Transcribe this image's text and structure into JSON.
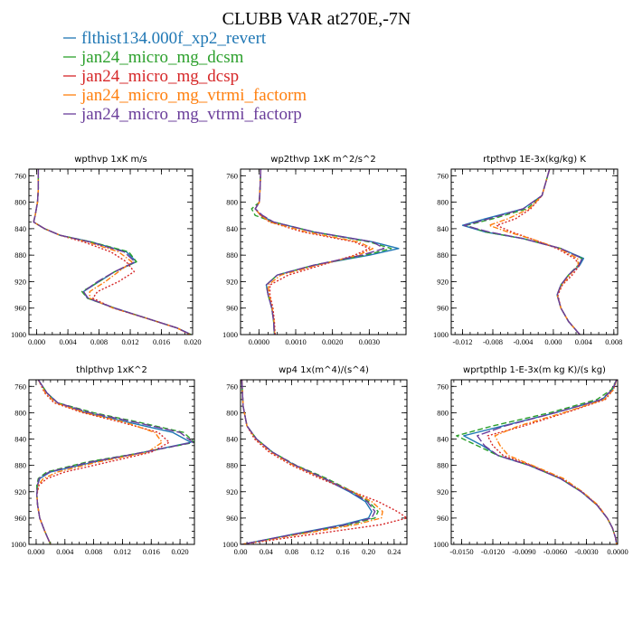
{
  "title": "CLUBB VAR at270E,-7N",
  "legend": [
    {
      "name": "flthist134.000f_xp2_revert",
      "color": "#1f77b4",
      "dash": "solid"
    },
    {
      "name": "jan24_micro_mg_dcsm",
      "color": "#2ca02c",
      "dash": "dashed"
    },
    {
      "name": "jan24_micro_mg_dcsp",
      "color": "#d62728",
      "dash": "dotted"
    },
    {
      "name": "jan24_micro_mg_vtrmi_factorm",
      "color": "#ff7f0e",
      "dash": "dashdot"
    },
    {
      "name": "jan24_micro_mg_vtrmi_factorp",
      "color": "#6a3d9a",
      "dash": "longdash"
    }
  ],
  "chart_data": [
    {
      "type": "line",
      "title": "wpthvp  1xK m/s",
      "ylim": [
        1000,
        750
      ],
      "yticks": [
        760,
        800,
        840,
        880,
        920,
        960,
        1000
      ],
      "xlim": [
        -0.001,
        0.02
      ],
      "xticks": [
        0,
        0.004,
        0.008,
        0.012,
        0.016,
        0.02
      ],
      "xtick_labels": [
        "0.000",
        "0.004",
        "0.008",
        "0.012",
        "0.016",
        "0.020"
      ],
      "y": [
        750,
        780,
        800,
        820,
        830,
        840,
        850,
        860,
        875,
        890,
        905,
        920,
        935,
        945,
        960,
        975,
        990,
        1000
      ],
      "series": [
        {
          "name": "flthist134.000f_xp2_revert",
          "x": [
            0.0002,
            0.0002,
            0.0001,
            -0.0002,
            -0.0004,
            0.001,
            0.003,
            0.007,
            0.0115,
            0.0128,
            0.01,
            0.008,
            0.006,
            0.0065,
            0.01,
            0.014,
            0.018,
            0.0198
          ]
        },
        {
          "name": "jan24_micro_mg_dcsm",
          "x": [
            0.0002,
            0.0002,
            0.0001,
            -0.0002,
            -0.0004,
            0.001,
            0.003,
            0.007,
            0.0118,
            0.0128,
            0.01,
            0.008,
            0.0058,
            0.0065,
            0.01,
            0.014,
            0.018,
            0.0198
          ]
        },
        {
          "name": "jan24_micro_mg_dcsp",
          "x": [
            0.0002,
            0.0002,
            0.0001,
            -0.0002,
            -0.0004,
            0.001,
            0.003,
            0.006,
            0.0095,
            0.0115,
            0.0125,
            0.0105,
            0.0078,
            0.0072,
            0.0098,
            0.014,
            0.018,
            0.0196
          ]
        },
        {
          "name": "jan24_micro_mg_vtrmi_factorm",
          "x": [
            0.0002,
            0.0002,
            0.0001,
            -0.0002,
            -0.0004,
            0.001,
            0.003,
            0.0065,
            0.0105,
            0.0122,
            0.0105,
            0.0088,
            0.0068,
            0.0068,
            0.0098,
            0.014,
            0.018,
            0.0197
          ]
        },
        {
          "name": "jan24_micro_mg_vtrmi_factorp",
          "x": [
            0.0002,
            0.0002,
            0.0001,
            -0.0002,
            -0.0004,
            0.001,
            0.003,
            0.0068,
            0.0112,
            0.0126,
            0.01,
            0.0078,
            0.006,
            0.0066,
            0.01,
            0.014,
            0.018,
            0.0198
          ]
        }
      ]
    },
    {
      "type": "line",
      "title": "wp2thvp  1xK m^2/s^2",
      "ylim": [
        1000,
        750
      ],
      "yticks": [
        760,
        800,
        840,
        880,
        920,
        960,
        1000
      ],
      "xlim": [
        -0.0005,
        0.004
      ],
      "xticks": [
        0,
        0.001,
        0.002,
        0.003
      ],
      "xtick_labels": [
        "0.0000",
        "0.0010",
        "0.0020",
        "0.0030"
      ],
      "y": [
        750,
        780,
        800,
        810,
        820,
        830,
        845,
        860,
        870,
        880,
        895,
        910,
        925,
        940,
        960,
        980,
        1000
      ],
      "series": [
        {
          "name": "flthist134.000f_xp2_revert",
          "x": [
            5e-05,
            3e-05,
            1e-05,
            -0.0001,
            5e-05,
            0.0004,
            0.0015,
            0.0031,
            0.0038,
            0.003,
            0.0015,
            0.0005,
            0.0002,
            0.00025,
            0.00035,
            0.0004,
            0.00042
          ]
        },
        {
          "name": "jan24_micro_mg_dcsm",
          "x": [
            5e-05,
            3e-05,
            1e-05,
            -0.0002,
            -0.0001,
            0.0004,
            0.0015,
            0.003,
            0.0036,
            0.0029,
            0.0015,
            0.0005,
            0.0002,
            0.00025,
            0.00035,
            0.0004,
            0.00042
          ]
        },
        {
          "name": "jan24_micro_mg_dcsp",
          "x": [
            5e-05,
            3e-05,
            1e-05,
            -0.0001,
            5e-05,
            0.0003,
            0.0012,
            0.0026,
            0.003,
            0.0026,
            0.0017,
            0.0008,
            0.0003,
            0.0003,
            0.00038,
            0.00042,
            0.00044
          ]
        },
        {
          "name": "jan24_micro_mg_vtrmi_factorm",
          "x": [
            5e-05,
            3e-05,
            1e-05,
            -0.0001,
            5e-05,
            0.0003,
            0.0013,
            0.0027,
            0.0031,
            0.0027,
            0.0016,
            0.0006,
            0.00025,
            0.00028,
            0.00036,
            0.00041,
            0.00043
          ]
        },
        {
          "name": "jan24_micro_mg_vtrmi_factorp",
          "x": [
            5e-05,
            3e-05,
            1e-05,
            -0.0001,
            0.0001,
            0.0004,
            0.0015,
            0.0031,
            0.0034,
            0.0028,
            0.0015,
            0.0005,
            0.0002,
            0.00025,
            0.00035,
            0.0004,
            0.00042
          ]
        }
      ]
    },
    {
      "type": "line",
      "title": "rtpthvp  1E-3x(kg/kg) K",
      "ylim": [
        1000,
        750
      ],
      "yticks": [
        760,
        800,
        840,
        880,
        920,
        960,
        1000
      ],
      "xlim": [
        -0.0135,
        0.0085
      ],
      "xticks": [
        -0.012,
        -0.008,
        -0.004,
        0,
        0.004,
        0.008
      ],
      "xtick_labels": [
        "-0.012",
        "-0.008",
        "-0.004",
        "0.000",
        "0.004",
        "0.008"
      ],
      "y": [
        750,
        770,
        790,
        810,
        825,
        835,
        845,
        855,
        870,
        885,
        895,
        910,
        925,
        940,
        960,
        980,
        1000
      ],
      "series": [
        {
          "name": "flthist134.000f_xp2_revert",
          "x": [
            -0.0005,
            -0.001,
            -0.0015,
            -0.004,
            -0.009,
            -0.012,
            -0.009,
            -0.004,
            0.001,
            0.004,
            0.0035,
            0.002,
            0.001,
            0.0005,
            0.001,
            0.002,
            0.0035
          ]
        },
        {
          "name": "jan24_micro_mg_dcsm",
          "x": [
            -0.0005,
            -0.001,
            -0.0015,
            -0.0035,
            -0.008,
            -0.0115,
            -0.009,
            -0.004,
            0.001,
            0.0038,
            0.0033,
            0.002,
            0.001,
            0.0005,
            0.001,
            0.002,
            0.0035
          ]
        },
        {
          "name": "jan24_micro_mg_dcsp",
          "x": [
            -0.0005,
            -0.001,
            -0.0015,
            -0.003,
            -0.005,
            -0.0075,
            -0.0055,
            -0.003,
            0.0005,
            0.0028,
            0.0035,
            0.0025,
            0.0012,
            0.0006,
            0.001,
            0.002,
            0.0035
          ]
        },
        {
          "name": "jan24_micro_mg_vtrmi_factorm",
          "x": [
            -0.0005,
            -0.001,
            -0.0015,
            -0.0032,
            -0.006,
            -0.0085,
            -0.006,
            -0.003,
            0.0008,
            0.0032,
            0.0033,
            0.0022,
            0.0011,
            0.0005,
            0.001,
            0.002,
            0.0035
          ]
        },
        {
          "name": "jan24_micro_mg_vtrmi_factorp",
          "x": [
            -0.0005,
            -0.001,
            -0.0015,
            -0.004,
            -0.0085,
            -0.0118,
            -0.0085,
            -0.004,
            0.001,
            0.0038,
            0.0034,
            0.002,
            0.001,
            0.0005,
            0.001,
            0.002,
            0.0035
          ]
        }
      ]
    },
    {
      "type": "line",
      "title": "thlpthvp  1xK^2",
      "ylim": [
        1000,
        750
      ],
      "yticks": [
        760,
        800,
        840,
        880,
        920,
        960,
        1000
      ],
      "xlim": [
        -0.001,
        0.022
      ],
      "xticks": [
        0,
        0.004,
        0.008,
        0.012,
        0.016,
        0.02
      ],
      "xtick_labels": [
        "0.000",
        "0.004",
        "0.008",
        "0.012",
        "0.016",
        "0.020"
      ],
      "y": [
        750,
        770,
        785,
        800,
        815,
        830,
        845,
        860,
        875,
        890,
        900,
        910,
        925,
        940,
        960,
        980,
        1000
      ],
      "series": [
        {
          "name": "flthist134.000f_xp2_revert",
          "x": [
            0.0003,
            0.0015,
            0.003,
            0.007,
            0.013,
            0.019,
            0.0215,
            0.015,
            0.008,
            0.002,
            0.0005,
            0.0002,
            0.0001,
            0.0002,
            0.0005,
            0.0012,
            0.002
          ]
        },
        {
          "name": "jan24_micro_mg_dcsm",
          "x": [
            0.0003,
            0.0015,
            0.003,
            0.008,
            0.0145,
            0.0205,
            0.022,
            0.015,
            0.007,
            0.0015,
            0.0003,
            0.0001,
            0.0001,
            0.0002,
            0.0005,
            0.0012,
            0.002
          ]
        },
        {
          "name": "jan24_micro_mg_dcsp",
          "x": [
            0.0003,
            0.0012,
            0.0025,
            0.0065,
            0.012,
            0.017,
            0.0185,
            0.016,
            0.01,
            0.004,
            0.0015,
            0.0004,
            0.0001,
            0.0002,
            0.0005,
            0.0012,
            0.002
          ]
        },
        {
          "name": "jan24_micro_mg_vtrmi_factorm",
          "x": [
            0.0003,
            0.0013,
            0.0027,
            0.0068,
            0.0125,
            0.0165,
            0.0175,
            0.0155,
            0.0085,
            0.003,
            0.001,
            0.0003,
            0.0001,
            0.0002,
            0.0005,
            0.0012,
            0.002
          ]
        },
        {
          "name": "jan24_micro_mg_vtrmi_factorp",
          "x": [
            0.0003,
            0.0015,
            0.003,
            0.0075,
            0.014,
            0.02,
            0.0218,
            0.015,
            0.0075,
            0.0018,
            0.0004,
            0.0002,
            0.0001,
            0.0002,
            0.0005,
            0.0012,
            0.002
          ]
        }
      ]
    },
    {
      "type": "line",
      "title": "wp4  1x(m^4)/(s^4)",
      "ylim": [
        1000,
        750
      ],
      "yticks": [
        760,
        800,
        840,
        880,
        920,
        960,
        1000
      ],
      "xlim": [
        0,
        0.26
      ],
      "xticks": [
        0,
        0.04,
        0.08,
        0.12,
        0.16,
        0.2,
        0.24
      ],
      "xtick_labels": [
        "0.00",
        "0.04",
        "0.08",
        "0.12",
        "0.16",
        "0.20",
        "0.24"
      ],
      "y": [
        750,
        790,
        820,
        840,
        860,
        880,
        900,
        920,
        935,
        950,
        960,
        970,
        985,
        1000
      ],
      "series": [
        {
          "name": "flthist134.000f_xp2_revert",
          "x": [
            0.002,
            0.004,
            0.01,
            0.025,
            0.05,
            0.085,
            0.13,
            0.17,
            0.195,
            0.205,
            0.2,
            0.16,
            0.08,
            0.002
          ]
        },
        {
          "name": "jan24_micro_mg_dcsm",
          "x": [
            0.002,
            0.004,
            0.01,
            0.025,
            0.05,
            0.087,
            0.135,
            0.175,
            0.2,
            0.215,
            0.21,
            0.17,
            0.085,
            0.002
          ]
        },
        {
          "name": "jan24_micro_mg_dcsp",
          "x": [
            0.002,
            0.004,
            0.01,
            0.022,
            0.045,
            0.08,
            0.125,
            0.175,
            0.215,
            0.245,
            0.26,
            0.22,
            0.11,
            0.002
          ]
        },
        {
          "name": "jan24_micro_mg_vtrmi_factorm",
          "x": [
            0.002,
            0.004,
            0.01,
            0.024,
            0.048,
            0.083,
            0.13,
            0.175,
            0.205,
            0.222,
            0.22,
            0.18,
            0.09,
            0.002
          ]
        },
        {
          "name": "jan24_micro_mg_vtrmi_factorp",
          "x": [
            0.002,
            0.004,
            0.01,
            0.025,
            0.05,
            0.086,
            0.132,
            0.172,
            0.198,
            0.21,
            0.205,
            0.165,
            0.082,
            0.002
          ]
        }
      ]
    },
    {
      "type": "line",
      "title": "wprtpthlp  1-E-3x(m kg K)/(s kg)",
      "ylim": [
        1000,
        750
      ],
      "yticks": [
        760,
        800,
        840,
        880,
        920,
        960,
        1000
      ],
      "xlim": [
        -0.016,
        0
      ],
      "xticks": [
        -0.015,
        -0.012,
        -0.009,
        -0.006,
        -0.003,
        0
      ],
      "xtick_labels": [
        "-0.0150",
        "-0.0120",
        "-0.0090",
        "-0.0060",
        "-0.0030",
        "0.0000"
      ],
      "y": [
        750,
        765,
        780,
        800,
        820,
        835,
        850,
        865,
        880,
        900,
        920,
        940,
        960,
        975,
        990,
        1000
      ],
      "series": [
        {
          "name": "flthist134.000f_xp2_revert",
          "x": [
            -0.0001,
            -0.0005,
            -0.0015,
            -0.006,
            -0.011,
            -0.0148,
            -0.013,
            -0.0115,
            -0.0085,
            -0.0055,
            -0.0035,
            -0.002,
            -0.001,
            -0.0005,
            -0.0002,
            -0.0001
          ]
        },
        {
          "name": "jan24_micro_mg_dcsm",
          "x": [
            -0.0001,
            -0.0006,
            -0.002,
            -0.0065,
            -0.012,
            -0.0155,
            -0.0135,
            -0.0115,
            -0.0085,
            -0.0055,
            -0.0035,
            -0.002,
            -0.001,
            -0.0005,
            -0.0002,
            -0.0001
          ]
        },
        {
          "name": "jan24_micro_mg_dcsp",
          "x": [
            -0.0001,
            -0.0004,
            -0.0012,
            -0.005,
            -0.009,
            -0.0125,
            -0.012,
            -0.011,
            -0.0083,
            -0.0054,
            -0.0034,
            -0.002,
            -0.001,
            -0.0005,
            -0.0002,
            -0.0001
          ]
        },
        {
          "name": "jan24_micro_mg_vtrmi_factorm",
          "x": [
            -0.0001,
            -0.0004,
            -0.0013,
            -0.0052,
            -0.0095,
            -0.0118,
            -0.0113,
            -0.0105,
            -0.0082,
            -0.0052,
            -0.0034,
            -0.0019,
            -0.001,
            -0.0005,
            -0.0002,
            -0.0001
          ]
        },
        {
          "name": "jan24_micro_mg_vtrmi_factorp",
          "x": [
            -0.0001,
            -0.0005,
            -0.0016,
            -0.006,
            -0.0108,
            -0.0135,
            -0.0128,
            -0.0115,
            -0.0085,
            -0.0055,
            -0.0035,
            -0.002,
            -0.001,
            -0.0005,
            -0.0002,
            -0.0001
          ]
        }
      ]
    }
  ]
}
